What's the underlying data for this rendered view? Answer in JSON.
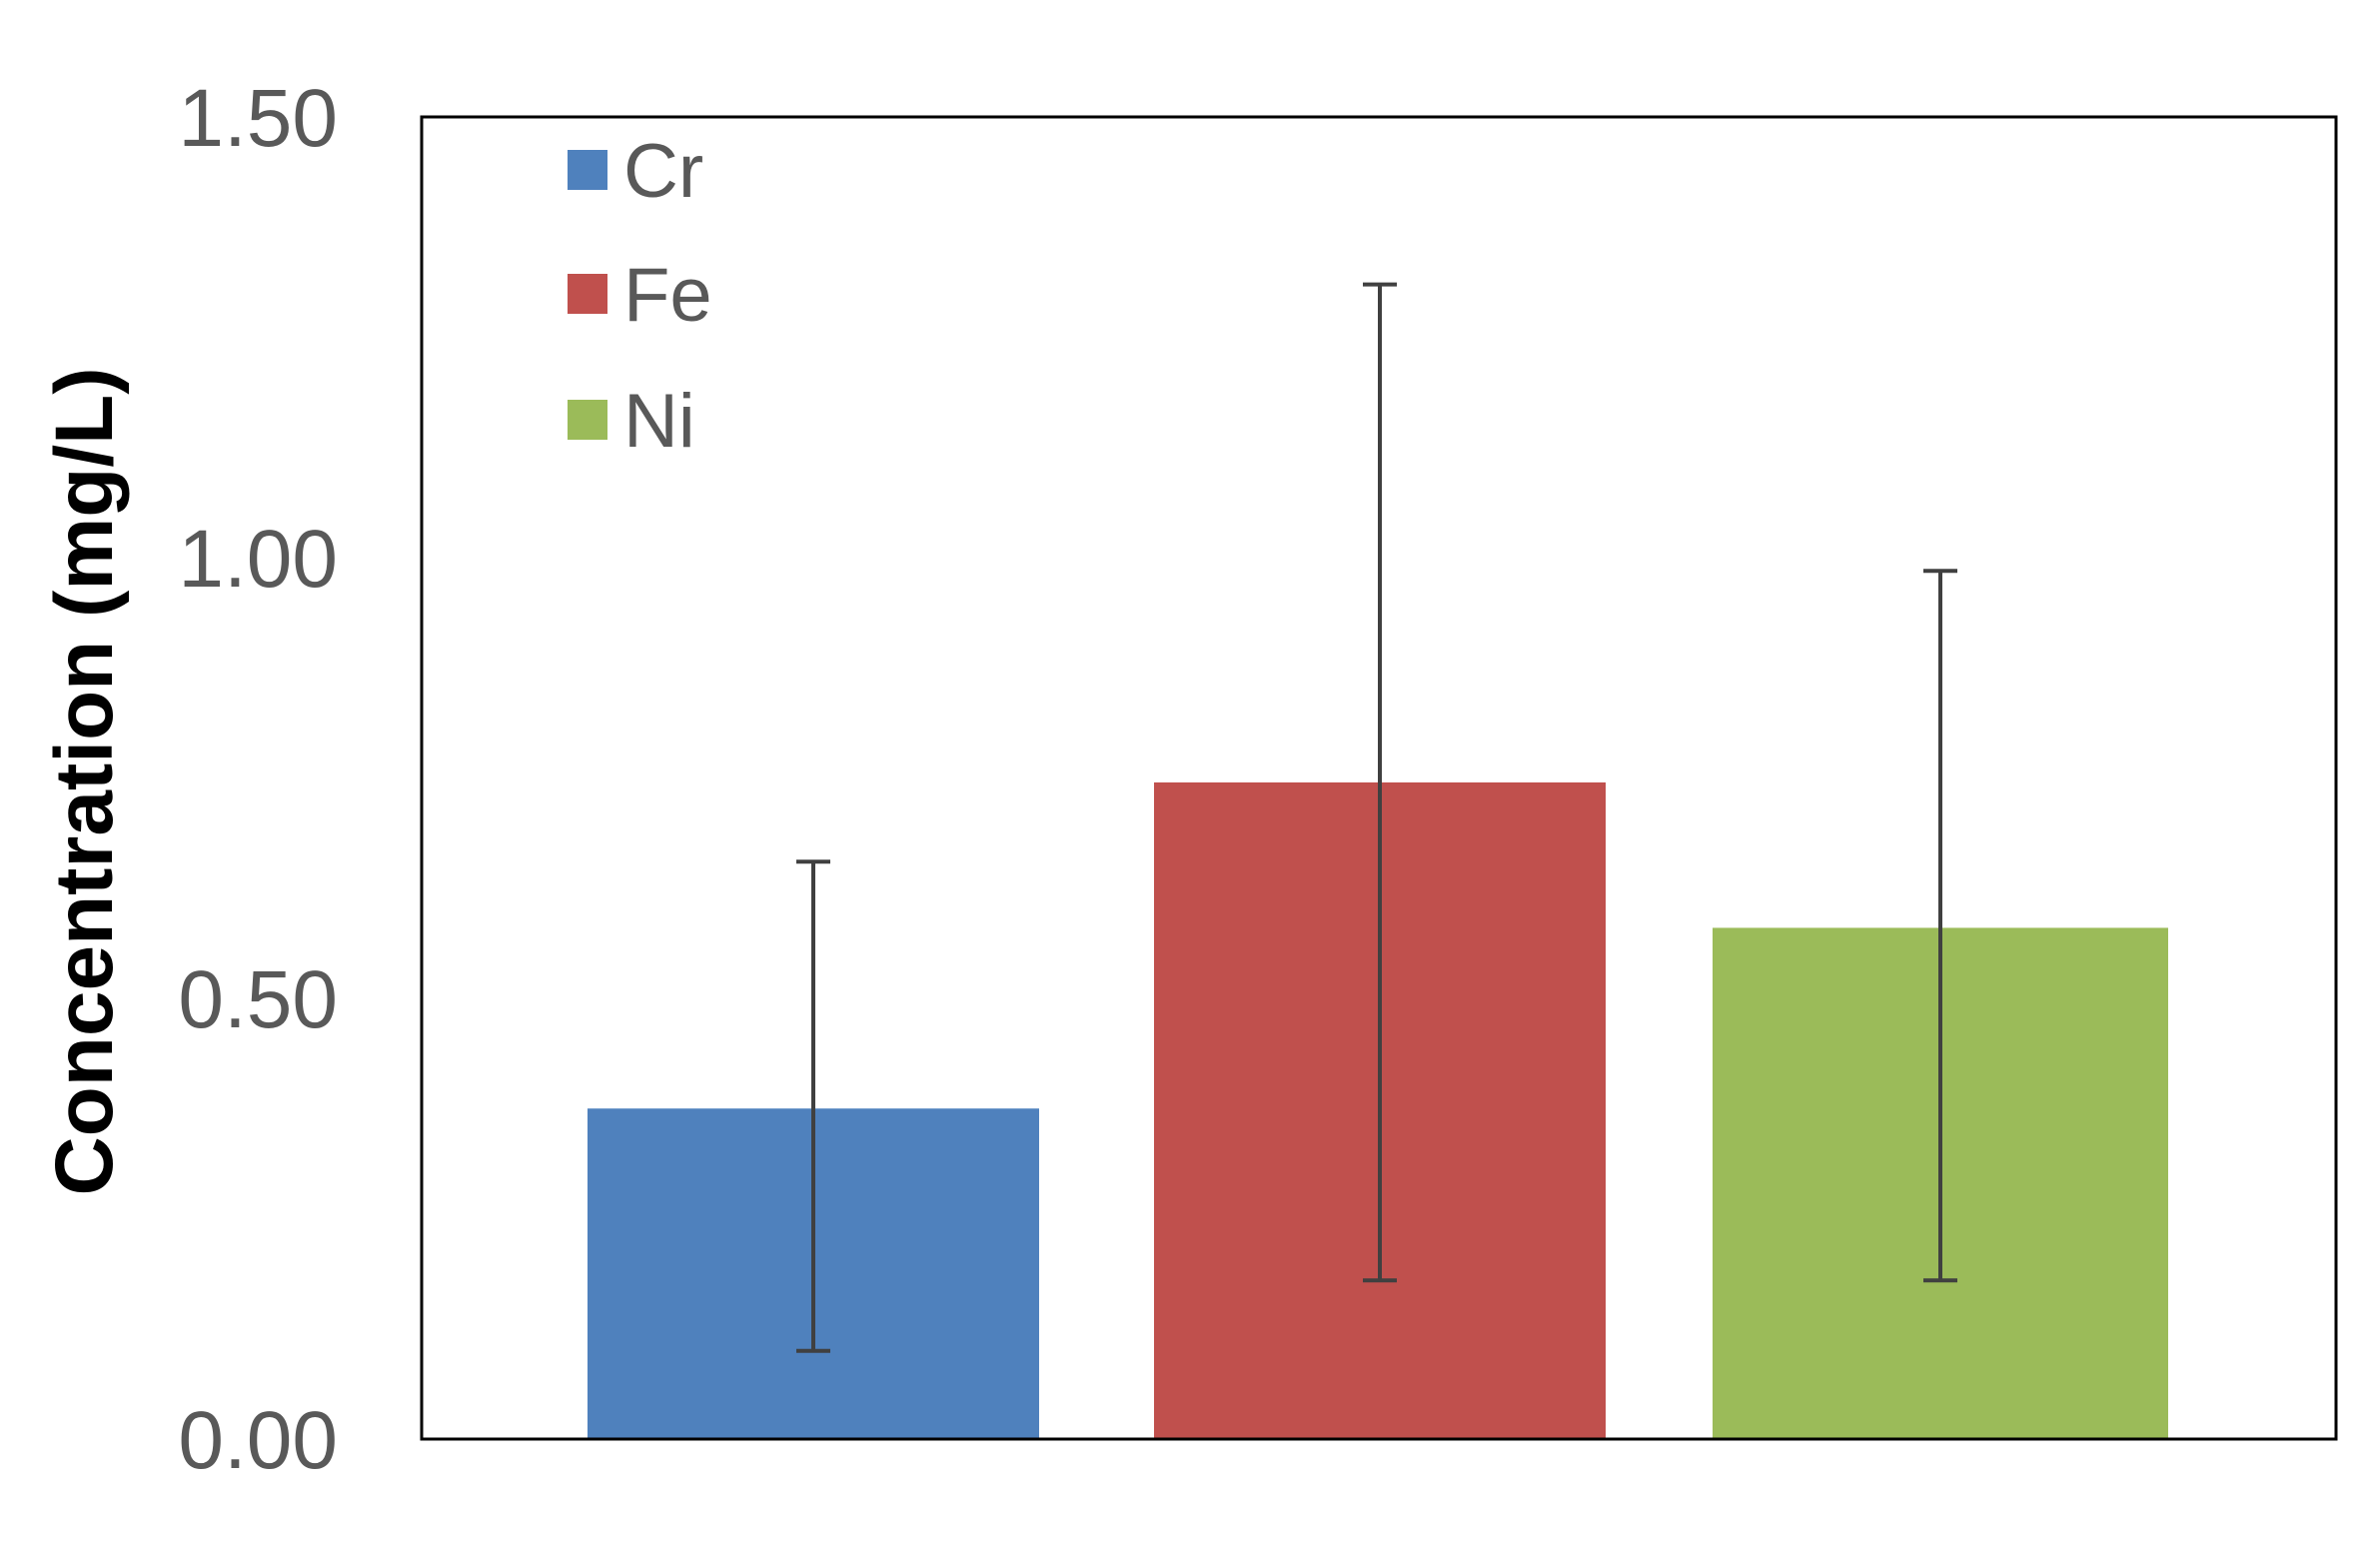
{
  "chart_data": {
    "type": "bar",
    "title": "",
    "xlabel": "",
    "ylabel": "Concentration (mg/L)",
    "ylim": [
      0,
      1.5
    ],
    "yticks": [
      "0.00",
      "0.50",
      "1.00",
      "1.50"
    ],
    "grid": false,
    "legend_position": "top-left",
    "series": [
      {
        "name": "Cr",
        "value": 0.375,
        "error_low": 0.1,
        "error_high": 0.655,
        "color": "#4F81BD"
      },
      {
        "name": "Fe",
        "value": 0.745,
        "error_low": 0.18,
        "error_high": 1.31,
        "color": "#C0504D"
      },
      {
        "name": "Ni",
        "value": 0.58,
        "error_low": 0.18,
        "error_high": 0.985,
        "color": "#9BBB59"
      }
    ]
  }
}
